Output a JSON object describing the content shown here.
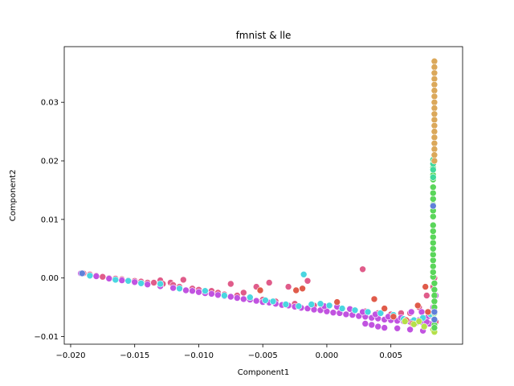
{
  "chart_data": {
    "type": "scatter",
    "title": "fmnist & lle",
    "xlabel": "Component1",
    "ylabel": "Component2",
    "xlim": [
      -0.0205,
      0.0106
    ],
    "ylim": [
      -0.0113,
      0.0395
    ],
    "xticks": [
      -0.02,
      -0.015,
      -0.01,
      -0.005,
      0.0,
      0.005
    ],
    "xtick_labels": [
      "−0.020",
      "−0.015",
      "−0.010",
      "−0.005",
      "0.000",
      "0.005"
    ],
    "yticks": [
      -0.01,
      0.0,
      0.01,
      0.02,
      0.03
    ],
    "ytick_labels": [
      "−0.01",
      "0.00",
      "0.01",
      "0.02",
      "0.03"
    ],
    "grid": false,
    "legend": "none",
    "series": [
      {
        "color": "#e05c8a",
        "points": [
          [
            -0.019,
            0.0008
          ],
          [
            -0.0185,
            0.0006
          ],
          [
            -0.018,
            0.0004
          ],
          [
            -0.0175,
            0.0002
          ],
          [
            -0.017,
            0.0
          ],
          [
            -0.0165,
            -0.0001
          ],
          [
            -0.016,
            -0.0002
          ],
          [
            -0.0155,
            -0.0004
          ],
          [
            -0.015,
            -0.0005
          ],
          [
            -0.0145,
            -0.0006
          ],
          [
            -0.014,
            -0.0008
          ],
          [
            -0.0135,
            -0.0008
          ],
          [
            -0.013,
            -0.0004
          ],
          [
            -0.0128,
            -0.001
          ],
          [
            -0.0122,
            -0.0008
          ],
          [
            -0.012,
            -0.0012
          ],
          [
            -0.0115,
            -0.0015
          ],
          [
            -0.0112,
            -0.0003
          ],
          [
            -0.0105,
            -0.0018
          ],
          [
            -0.01,
            -0.002
          ],
          [
            -0.009,
            -0.0022
          ],
          [
            -0.0085,
            -0.0025
          ],
          [
            -0.008,
            -0.0028
          ],
          [
            -0.0075,
            -0.001
          ],
          [
            -0.007,
            -0.003
          ],
          [
            -0.0065,
            -0.0025
          ],
          [
            -0.006,
            -0.0034
          ],
          [
            -0.0055,
            -0.0015
          ],
          [
            -0.005,
            -0.0037
          ],
          [
            -0.0045,
            -0.0008
          ],
          [
            -0.004,
            -0.004
          ],
          [
            -0.003,
            -0.0015
          ],
          [
            -0.0025,
            -0.0044
          ],
          [
            -0.0015,
            -0.0005
          ],
          [
            -0.001,
            -0.0047
          ],
          [
            0.0,
            -0.005
          ],
          [
            0.001,
            -0.0052
          ],
          [
            0.0028,
            0.0015
          ],
          [
            0.003,
            -0.0057
          ],
          [
            0.004,
            -0.006
          ],
          [
            0.005,
            -0.0062
          ],
          [
            0.0058,
            -0.006
          ],
          [
            0.0065,
            -0.006
          ],
          [
            0.0072,
            -0.005
          ],
          [
            0.0078,
            -0.003
          ],
          [
            0.0083,
            -0.0015
          ],
          [
            0.0084,
            0.0
          ],
          [
            0.0085,
            -0.0075
          ]
        ]
      },
      {
        "color": "#c153e0",
        "points": [
          [
            -0.0192,
            0.0008
          ],
          [
            -0.018,
            0.0003
          ],
          [
            -0.017,
            -0.0001
          ],
          [
            -0.016,
            -0.0004
          ],
          [
            -0.015,
            -0.0007
          ],
          [
            -0.014,
            -0.0011
          ],
          [
            -0.013,
            -0.0014
          ],
          [
            -0.012,
            -0.0017
          ],
          [
            -0.011,
            -0.0021
          ],
          [
            -0.0105,
            -0.0022
          ],
          [
            -0.01,
            -0.0024
          ],
          [
            -0.0095,
            -0.0026
          ],
          [
            -0.009,
            -0.0027
          ],
          [
            -0.0085,
            -0.0029
          ],
          [
            -0.008,
            -0.0031
          ],
          [
            -0.0075,
            -0.0032
          ],
          [
            -0.007,
            -0.0034
          ],
          [
            -0.0065,
            -0.0036
          ],
          [
            -0.006,
            -0.0037
          ],
          [
            -0.0055,
            -0.0039
          ],
          [
            -0.005,
            -0.0041
          ],
          [
            -0.0045,
            -0.0042
          ],
          [
            -0.004,
            -0.0044
          ],
          [
            -0.0035,
            -0.0046
          ],
          [
            -0.003,
            -0.0047
          ],
          [
            -0.0025,
            -0.0049
          ],
          [
            -0.002,
            -0.0051
          ],
          [
            -0.0015,
            -0.0052
          ],
          [
            -0.001,
            -0.0054
          ],
          [
            -0.0005,
            -0.0055
          ],
          [
            0.0,
            -0.0057
          ],
          [
            0.0005,
            -0.0059
          ],
          [
            0.001,
            -0.006
          ],
          [
            0.0015,
            -0.0062
          ],
          [
            0.002,
            -0.0063
          ],
          [
            0.0025,
            -0.0065
          ],
          [
            0.003,
            -0.0066
          ],
          [
            0.0035,
            -0.0068
          ],
          [
            0.004,
            -0.0069
          ],
          [
            0.0045,
            -0.0071
          ],
          [
            0.005,
            -0.0072
          ],
          [
            0.0055,
            -0.0073
          ],
          [
            0.006,
            -0.0074
          ],
          [
            0.0065,
            -0.0075
          ],
          [
            0.007,
            -0.0076
          ],
          [
            0.0075,
            -0.0077
          ],
          [
            0.008,
            -0.0078
          ],
          [
            0.0082,
            -0.0065
          ],
          [
            0.0083,
            -0.005
          ],
          [
            0.0084,
            -0.004
          ],
          [
            0.0085,
            -0.003
          ],
          [
            0.0078,
            -0.0068
          ],
          [
            0.0072,
            -0.0072
          ],
          [
            0.0066,
            -0.0058
          ],
          [
            0.0074,
            -0.0058
          ],
          [
            0.003,
            -0.0078
          ],
          [
            0.0035,
            -0.008
          ],
          [
            0.004,
            -0.0083
          ],
          [
            0.0045,
            -0.0085
          ],
          [
            0.0055,
            -0.0086
          ],
          [
            0.0065,
            -0.0088
          ],
          [
            0.0075,
            -0.009
          ],
          [
            0.0078,
            -0.0075
          ],
          [
            -0.0002,
            -0.0048
          ],
          [
            0.0008,
            -0.0049
          ],
          [
            0.0018,
            -0.0053
          ],
          [
            0.0028,
            -0.0058
          ],
          [
            0.0038,
            -0.0062
          ],
          [
            0.0048,
            -0.0066
          ],
          [
            0.0058,
            -0.0068
          ]
        ]
      },
      {
        "color": "#4ad6e0",
        "points": [
          [
            -0.0185,
            0.0004
          ],
          [
            -0.0165,
            -0.0003
          ],
          [
            -0.0155,
            -0.0005
          ],
          [
            -0.0145,
            -0.0009
          ],
          [
            -0.013,
            -0.001
          ],
          [
            -0.0115,
            -0.0018
          ],
          [
            -0.0095,
            -0.0022
          ],
          [
            -0.008,
            -0.003
          ],
          [
            -0.006,
            -0.0033
          ],
          [
            -0.0048,
            -0.0038
          ],
          [
            -0.0042,
            -0.004
          ],
          [
            -0.0032,
            -0.0045
          ],
          [
            -0.0022,
            -0.0048
          ],
          [
            -0.0018,
            0.0006
          ],
          [
            -0.0012,
            -0.0045
          ],
          [
            -0.0005,
            -0.0044
          ],
          [
            0.0002,
            -0.0047
          ],
          [
            0.0012,
            -0.0052
          ],
          [
            0.0022,
            -0.0055
          ],
          [
            0.0032,
            -0.0058
          ],
          [
            0.0042,
            -0.006
          ],
          [
            0.0052,
            -0.0063
          ],
          [
            0.006,
            -0.007
          ],
          [
            0.0068,
            -0.0072
          ],
          [
            0.0075,
            -0.0068
          ],
          [
            0.0081,
            -0.0062
          ]
        ]
      },
      {
        "color": "#e05b4a",
        "points": [
          [
            -0.0052,
            -0.0021
          ],
          [
            -0.0024,
            -0.0021
          ],
          [
            -0.0019,
            -0.0018
          ],
          [
            0.0008,
            -0.0041
          ],
          [
            0.0037,
            -0.0036
          ],
          [
            0.0045,
            -0.0052
          ],
          [
            0.0052,
            -0.0066
          ],
          [
            0.0062,
            -0.0072
          ],
          [
            0.0067,
            -0.0078
          ],
          [
            0.0071,
            -0.0047
          ],
          [
            0.0079,
            -0.0058
          ],
          [
            0.0077,
            -0.0015
          ]
        ]
      },
      {
        "color": "#b5e04a",
        "points": [
          [
            0.0061,
            -0.0074
          ],
          [
            0.0068,
            -0.0079
          ],
          [
            0.0076,
            -0.0083
          ],
          [
            0.0083,
            -0.0088
          ],
          [
            0.0084,
            -0.0092
          ],
          [
            0.0072,
            -0.0074
          ]
        ]
      },
      {
        "color": "#5ad65a",
        "points": [
          [
            0.0083,
            0.0002
          ],
          [
            0.0083,
            0.001
          ],
          [
            0.0083,
            0.002
          ],
          [
            0.0083,
            0.003
          ],
          [
            0.0083,
            0.004
          ],
          [
            0.0083,
            0.005
          ],
          [
            0.0083,
            0.006
          ],
          [
            0.0083,
            0.007
          ],
          [
            0.0083,
            0.008
          ],
          [
            0.0083,
            0.009
          ],
          [
            0.0083,
            0.0105
          ],
          [
            0.0083,
            0.0115
          ],
          [
            0.0083,
            0.0125
          ],
          [
            0.0083,
            0.0135
          ],
          [
            0.0083,
            0.0145
          ],
          [
            0.0083,
            0.0155
          ],
          [
            0.0083,
            0.0168
          ],
          [
            0.0083,
            0.0176
          ],
          [
            0.0083,
            0.0188
          ],
          [
            0.0084,
            -0.0009
          ],
          [
            0.0084,
            -0.002
          ],
          [
            0.0084,
            -0.003
          ],
          [
            0.0084,
            -0.004
          ],
          [
            0.0084,
            -0.005
          ],
          [
            0.0084,
            -0.006
          ],
          [
            0.0084,
            -0.007
          ],
          [
            0.0084,
            -0.008
          ],
          [
            0.0084,
            -0.0085
          ]
        ]
      },
      {
        "color": "#3fd99a",
        "points": [
          [
            0.0083,
            0.0195
          ],
          [
            0.0083,
            0.0202
          ],
          [
            0.0083,
            0.0185
          ],
          [
            0.0083,
            0.0172
          ]
        ]
      },
      {
        "color": "#dba85a",
        "points": [
          [
            0.0084,
            0.037
          ],
          [
            0.0084,
            0.036
          ],
          [
            0.0084,
            0.035
          ],
          [
            0.0084,
            0.034
          ],
          [
            0.0084,
            0.033
          ],
          [
            0.0084,
            0.032
          ],
          [
            0.0084,
            0.031
          ],
          [
            0.0084,
            0.03
          ],
          [
            0.0084,
            0.029
          ],
          [
            0.0084,
            0.028
          ],
          [
            0.0084,
            0.027
          ],
          [
            0.0084,
            0.026
          ],
          [
            0.0084,
            0.025
          ],
          [
            0.0084,
            0.024
          ],
          [
            0.0084,
            0.023
          ],
          [
            0.0084,
            0.022
          ],
          [
            0.0084,
            0.021
          ],
          [
            0.0084,
            0.02
          ]
        ]
      },
      {
        "color": "#6080d9",
        "points": [
          [
            -0.0191,
            0.0008
          ],
          [
            0.0083,
            0.0123
          ],
          [
            0.0084,
            -0.0058
          ],
          [
            0.0084,
            -0.0071
          ]
        ]
      }
    ]
  }
}
